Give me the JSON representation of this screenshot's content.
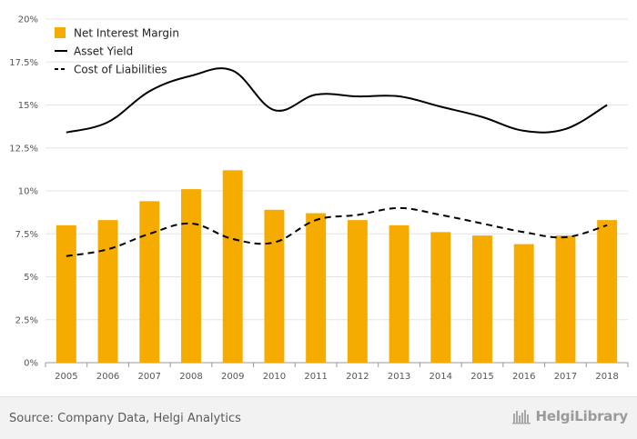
{
  "chart_data": {
    "type": "bar",
    "categories": [
      "2005",
      "2006",
      "2007",
      "2008",
      "2009",
      "2010",
      "2011",
      "2012",
      "2013",
      "2014",
      "2015",
      "2016",
      "2017",
      "2018"
    ],
    "series": [
      {
        "name": "Net Interest Margin",
        "kind": "bar",
        "color": "#f5ab00",
        "values": [
          8.0,
          8.3,
          9.4,
          10.1,
          11.2,
          8.9,
          8.7,
          8.3,
          8.0,
          7.6,
          7.4,
          6.9,
          7.4,
          8.3
        ]
      },
      {
        "name": "Asset Yield",
        "kind": "line",
        "color": "#000000",
        "dash": "solid",
        "values": [
          13.4,
          14.0,
          15.8,
          16.7,
          17.0,
          14.7,
          15.6,
          15.5,
          15.5,
          14.9,
          14.3,
          13.5,
          13.6,
          15.0
        ]
      },
      {
        "name": "Cost of Liabilities",
        "kind": "line",
        "color": "#000000",
        "dash": "dashed",
        "values": [
          6.2,
          6.6,
          7.5,
          8.1,
          7.2,
          7.0,
          8.3,
          8.6,
          9.0,
          8.6,
          8.1,
          7.6,
          7.3,
          8.0
        ]
      }
    ],
    "y_ticks": [
      "0%",
      "2.5%",
      "5%",
      "7.5%",
      "10%",
      "12.5%",
      "15%",
      "17.5%",
      "20%"
    ],
    "ylim": [
      0,
      20
    ],
    "grid": true,
    "legend_position": "top-left"
  },
  "footer": {
    "source": "Source: Company Data, Helgi Analytics",
    "brand": "HelgiLibrary",
    "brand_icon": "helgi-library-logo-icon"
  }
}
